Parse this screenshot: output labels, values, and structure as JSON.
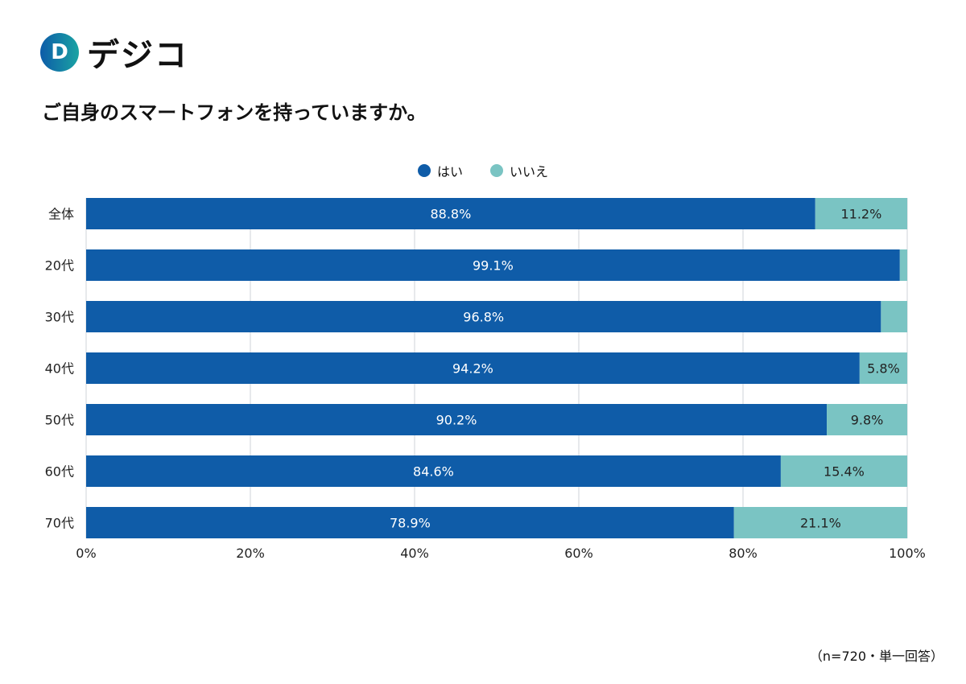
{
  "logo": {
    "text": "デジコ",
    "mark": "D"
  },
  "title": "ご自身のスマートフォンを持っていますか。",
  "note": "（n=720・単一回答）",
  "colors": {
    "yes": "#0f5ca8",
    "no": "#7ac4c3"
  },
  "chart_data": {
    "type": "bar",
    "orientation": "horizontal",
    "stacked": true,
    "categories": [
      "全体",
      "20代",
      "30代",
      "40代",
      "50代",
      "60代",
      "70代"
    ],
    "series": [
      {
        "name": "はい",
        "values": [
          88.8,
          99.1,
          96.8,
          94.2,
          90.2,
          84.6,
          78.9
        ],
        "labels": [
          "88.8%",
          "99.1%",
          "96.8%",
          "94.2%",
          "90.2%",
          "84.6%",
          "78.9%"
        ]
      },
      {
        "name": "いいえ",
        "values": [
          11.2,
          0.9,
          3.2,
          5.8,
          9.8,
          15.4,
          21.1
        ],
        "labels": [
          "11.2%",
          "",
          "",
          "5.8%",
          "9.8%",
          "15.4%",
          "21.1%"
        ]
      }
    ],
    "xlim": [
      0,
      100
    ],
    "xticks": [
      "0%",
      "20%",
      "40%",
      "60%",
      "80%",
      "100%"
    ],
    "grid": true,
    "legend": "top"
  }
}
